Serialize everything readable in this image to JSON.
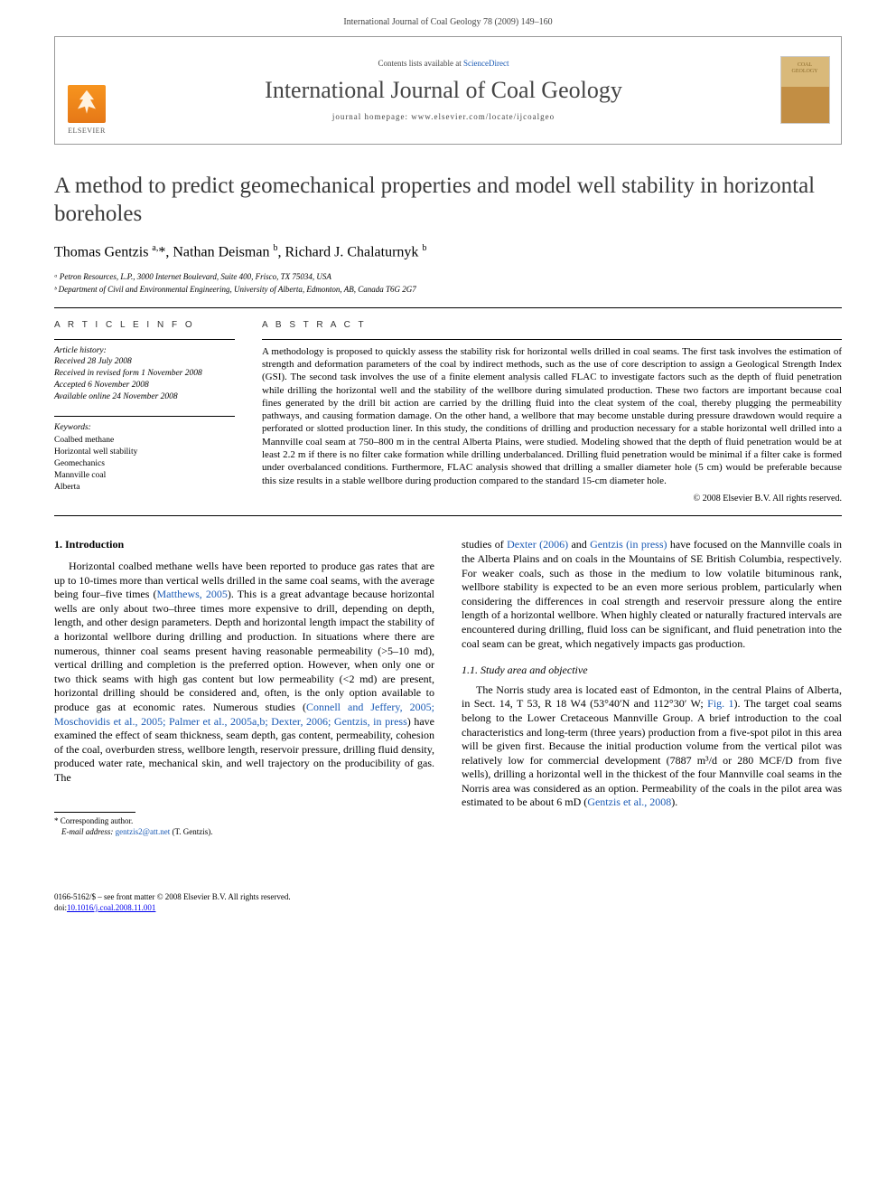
{
  "header": {
    "running": "International Journal of Coal Geology 78 (2009) 149–160"
  },
  "banner": {
    "contents_prefix": "Contents lists available at ",
    "contents_link": "ScienceDirect",
    "journal_name": "International Journal of Coal Geology",
    "homepage_prefix": "journal homepage: ",
    "homepage_url": "www.elsevier.com/locate/ijcoalgeo",
    "publisher": "ELSEVIER",
    "cover_label": "COAL GEOLOGY"
  },
  "article": {
    "title": "A method to predict geomechanical properties and model well stability in horizontal boreholes",
    "authors_html": "Thomas Gentzis <sup>a,</sup>*, Nathan Deisman <sup>b</sup>, Richard J. Chalaturnyk <sup>b</sup>",
    "affiliations": [
      "ᵃ Petron Resources, L.P., 3000 Internet Boulevard, Suite 400, Frisco, TX 75034, USA",
      "ᵇ Department of Civil and Environmental Engineering, University of Alberta, Edmonton, AB, Canada T6G 2G7"
    ]
  },
  "info": {
    "heading": "A R T I C L E   I N F O",
    "history_label": "Article history:",
    "history": [
      "Received 28 July 2008",
      "Received in revised form 1 November 2008",
      "Accepted 6 November 2008",
      "Available online 24 November 2008"
    ],
    "keywords_label": "Keywords:",
    "keywords": [
      "Coalbed methane",
      "Horizontal well stability",
      "Geomechanics",
      "Mannville coal",
      "Alberta"
    ]
  },
  "abstract": {
    "heading": "A B S T R A C T",
    "text": "A methodology is proposed to quickly assess the stability risk for horizontal wells drilled in coal seams. The first task involves the estimation of strength and deformation parameters of the coal by indirect methods, such as the use of core description to assign a Geological Strength Index (GSI). The second task involves the use of a finite element analysis called FLAC to investigate factors such as the depth of fluid penetration while drilling the horizontal well and the stability of the wellbore during simulated production. These two factors are important because coal fines generated by the drill bit action are carried by the drilling fluid into the cleat system of the coal, thereby plugging the permeability pathways, and causing formation damage. On the other hand, a wellbore that may become unstable during pressure drawdown would require a perforated or slotted production liner. In this study, the conditions of drilling and production necessary for a stable horizontal well drilled into a Mannville coal seam at 750–800 m in the central Alberta Plains, were studied. Modeling showed that the depth of fluid penetration would be at least 2.2 m if there is no filter cake formation while drilling underbalanced. Drilling fluid penetration would be minimal if a filter cake is formed under overbalanced conditions. Furthermore, FLAC analysis showed that drilling a smaller diameter hole (5 cm) would be preferable because this size results in a stable wellbore during production compared to the standard 15-cm diameter hole.",
    "copyright": "© 2008 Elsevier B.V. All rights reserved."
  },
  "body": {
    "section1_heading": "1. Introduction",
    "left_p1_a": "Horizontal coalbed methane wells have been reported to produce gas rates that are up to 10-times more than vertical wells drilled in the same coal seams, with the average being four–five times (",
    "left_p1_link1": "Matthews, 2005",
    "left_p1_b": "). This is a great advantage because horizontal wells are only about two–three times more expensive to drill, depending on depth, length, and other design parameters. Depth and horizontal length impact the stability of a horizontal wellbore during drilling and production. In situations where there are numerous, thinner coal seams present having reasonable permeability (>5–10 md), vertical drilling and completion is the preferred option. However, when only one or two thick seams with high gas content but low permeability (<2 md) are present, horizontal drilling should be considered and, often, is the only option available to produce gas at economic rates. Numerous studies (",
    "left_p1_link2": "Connell and Jeffery, 2005; Moschovidis et al., 2005; Palmer et al., 2005a,b; Dexter, 2006; Gentzis, in press",
    "left_p1_c": ") have examined the effect of seam thickness, seam depth, gas content, permeability, cohesion of the coal, overburden stress, wellbore length, reservoir pressure, drilling fluid density, produced water rate, mechanical skin, and well trajectory on the producibility of gas. The",
    "right_p1_a": "studies of ",
    "right_p1_link1": "Dexter (2006)",
    "right_p1_b": " and ",
    "right_p1_link2": "Gentzis (in press)",
    "right_p1_c": " have focused on the Mannville coals in the Alberta Plains and on coals in the Mountains of SE British Columbia, respectively. For weaker coals, such as those in the medium to low volatile bituminous rank, wellbore stability is expected to be an even more serious problem, particularly when considering the differences in coal strength and reservoir pressure along the entire length of a horizontal wellbore. When highly cleated or naturally fractured intervals are encountered during drilling, fluid loss can be significant, and fluid penetration into the coal seam can be great, which negatively impacts gas production.",
    "section11_heading": "1.1. Study area and objective",
    "right_p2_a": "The Norris study area is located east of Edmonton, in the central Plains of Alberta, in Sect. 14, T 53, R 18 W4 (53°40′N and 112°30′ W; ",
    "right_p2_link1": "Fig. 1",
    "right_p2_b": "). The target coal seams belong to the Lower Cretaceous Mannville Group. A brief introduction to the coal characteristics and long-term (three years) production from a five-spot pilot in this area will be given first. Because the initial production volume from the vertical pilot was relatively low for commercial development (7887 m³/d or 280 MCF/D from five wells), drilling a horizontal well in the thickest of the four Mannville coal seams in the Norris area was considered as an option. Permeability of the coals in the pilot area was estimated to be about 6 mD (",
    "right_p2_link2": "Gentzis et al., 2008",
    "right_p2_c": ")."
  },
  "footnote": {
    "corr": "* Corresponding author.",
    "email_label": "E-mail address:",
    "email": "gentzis2@att.net",
    "email_who": "(T. Gentzis)."
  },
  "footer": {
    "line1": "0166-5162/$ – see front matter © 2008 Elsevier B.V. All rights reserved.",
    "line2": "doi:10.1016/j.coal.2008.11.001"
  },
  "colors": {
    "link": "#1a5ab4",
    "elsevier_orange": "#f7941e",
    "text": "#000000"
  }
}
